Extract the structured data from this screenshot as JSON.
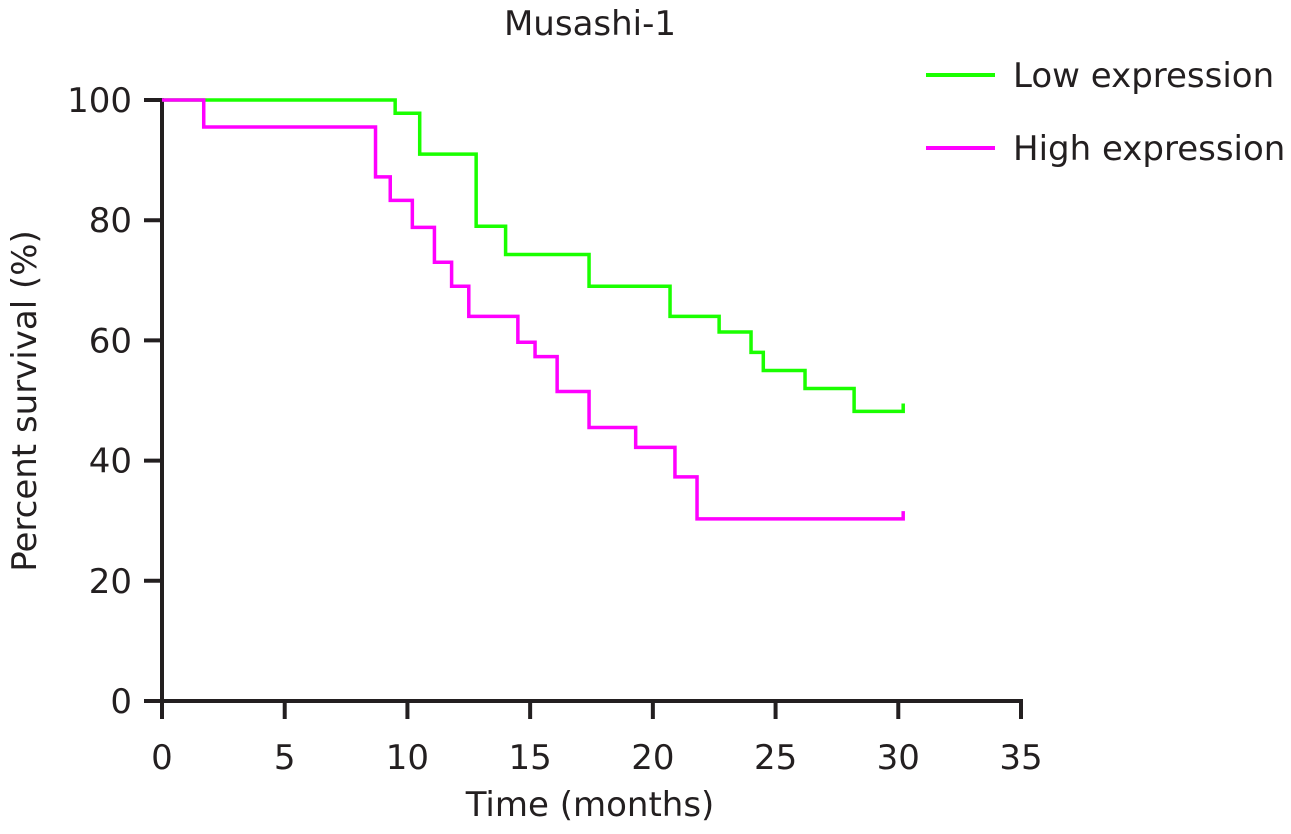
{
  "chart_data": {
    "type": "line",
    "title": "Musashi-1",
    "xlabel": "Time (months)",
    "ylabel": "Percent survival (%)",
    "xlim": [
      0,
      35
    ],
    "ylim": [
      0,
      100
    ],
    "xticks": [
      0,
      5,
      10,
      15,
      20,
      25,
      30,
      35
    ],
    "yticks": [
      0,
      20,
      40,
      60,
      80,
      100
    ],
    "grid": false,
    "legend_position": "top-right",
    "step": true,
    "series": [
      {
        "name": "Low expression",
        "color": "#1aff00",
        "x": [
          0,
          9.5,
          10.5,
          12.8,
          14.0,
          17.4,
          20.7,
          22.7,
          24.0,
          24.5,
          26.2,
          28.2,
          30.2
        ],
        "y": [
          100,
          97.8,
          91.0,
          79.0,
          74.3,
          69.0,
          64.0,
          61.4,
          58.0,
          55.0,
          52.0,
          48.2,
          49.5
        ]
      },
      {
        "name": "High expression",
        "color": "#ff00ff",
        "x": [
          0,
          1.7,
          8.7,
          9.3,
          10.2,
          11.1,
          11.8,
          12.5,
          14.5,
          15.2,
          16.1,
          17.4,
          19.3,
          20.9,
          21.8,
          30.2
        ],
        "y": [
          100,
          95.5,
          87.2,
          83.3,
          78.8,
          73.0,
          69.0,
          64.0,
          59.7,
          57.3,
          51.5,
          45.5,
          42.2,
          37.3,
          30.3,
          31.6
        ]
      }
    ]
  }
}
